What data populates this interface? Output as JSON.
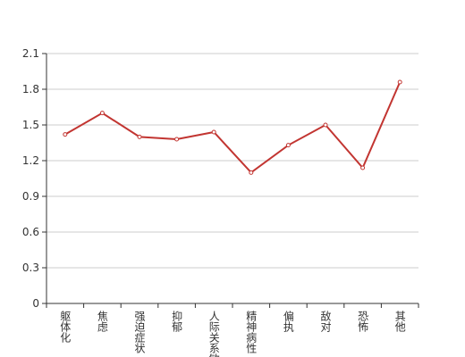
{
  "chart_data": {
    "type": "line",
    "categories": [
      "躯体化",
      "焦虑",
      "强迫症状",
      "抑郁",
      "人际关系敏感",
      "精神病性",
      "偏执",
      "敌对",
      "恐怖",
      "其他"
    ],
    "values": [
      1.42,
      1.6,
      1.4,
      1.38,
      1.44,
      1.1,
      1.33,
      1.5,
      1.14,
      1.86
    ],
    "color": "#c23531",
    "ylim": [
      0,
      2.1
    ],
    "yticks": [
      0,
      0.3,
      0.6,
      0.9,
      1.2,
      1.5,
      1.8,
      2.1
    ],
    "grid": true
  }
}
